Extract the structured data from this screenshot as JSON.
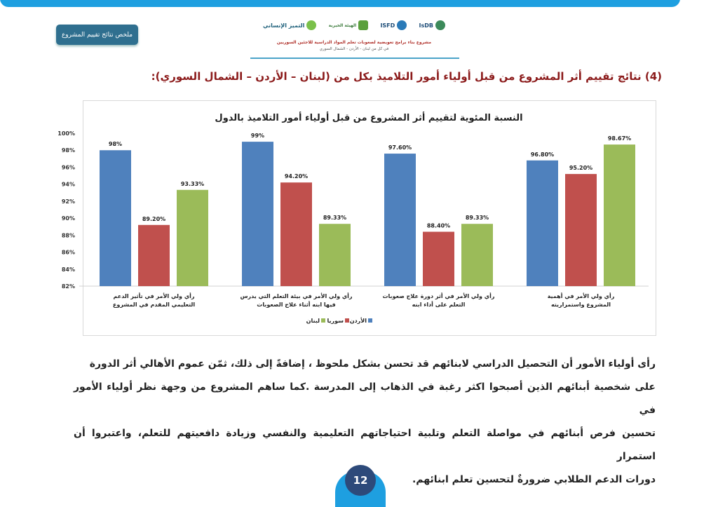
{
  "header": {
    "summary_button": "ملخص نتائج تقييم المشروع",
    "logos": [
      "IsDB",
      "ISFD",
      "الهيئة الخيرية",
      "التميز الإنساني"
    ],
    "project_title": "مشروع بناء برامج تعويضية لصعوبات تعلم المواد الدراسية للاجئين السوريين",
    "project_subtitle": "في كل من لبنان - الأردن - الشمال السوري"
  },
  "section_heading": "(4) نتائج تقييم أثر المشروع من قبل أولياء أمور التلاميذ بكل من (لبنان – الأردن – الشمال السوري):",
  "chart_data": {
    "type": "bar",
    "title": "النسبة المئوية لتقييم أثر المشروع من قبل أولياء أمور التلاميذ بالدول",
    "categories": [
      "رأي ولي الأمر في تأثير الدعم التعليمي المقدم في المشروع",
      "رأي ولي الأمر في بيئة التعلم التي يدرس فيها ابنه أثناء علاج الصعوبات",
      "رأي ولي الأمر في أثر دورة علاج صعوبات التعلم على أداء ابنه",
      "رأي ولي الأمر في أهمية المشروع واستمراريته"
    ],
    "series": [
      {
        "name": "الأردن",
        "color": "#4f81bd",
        "values": [
          98,
          99,
          97.6,
          96.8
        ],
        "labels": [
          "98%",
          "99%",
          "97.60%",
          "96.80%"
        ]
      },
      {
        "name": "سوريا",
        "color": "#c0504d",
        "values": [
          89.2,
          94.2,
          88.4,
          95.2
        ],
        "labels": [
          "89.20%",
          "94.20%",
          "88.40%",
          "95.20%"
        ]
      },
      {
        "name": "لبنان",
        "color": "#9bbb59",
        "values": [
          93.33,
          89.33,
          89.33,
          98.67
        ],
        "labels": [
          "93.33%",
          "89.33%",
          "89.33%",
          "98.67%"
        ]
      }
    ],
    "ylim": [
      82,
      100
    ],
    "yticks": [
      "82%",
      "84%",
      "86%",
      "88%",
      "90%",
      "92%",
      "94%",
      "96%",
      "98%",
      "100%"
    ],
    "grid": false,
    "legend": "bottom"
  },
  "paragraph": [
    "رأى أولياء الأمور أن التحصيل الدراسي لابنائهم قد تحسن بشكل ملحوظ ، إضافةً إلى ذلك، ثمّن عموم الأهالي أثر الدورة",
    "على شخصية أبنائهم الذين أصبحوا اكثر رغبة في الذهاب إلى المدرسة .كما ساهم المشروع من وجهة نظر أولياء الأمور في",
    "تحسين فرص أبنائهم في مواصلة التعلم وتلبية احتياجاتهم التعليمية والنفسي وزيادة دافعيتهم للتعلم، واعتبروا أن استمرار",
    "دورات الدعم الطلابي ضرورةٌ لتحسين تعلم ابنائهم."
  ],
  "page_number": "12"
}
